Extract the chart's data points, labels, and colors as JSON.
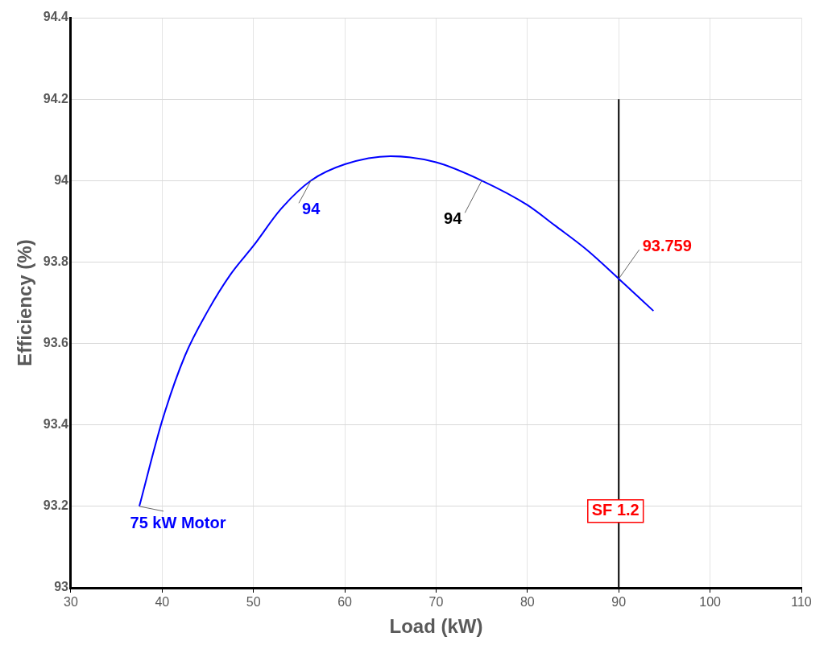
{
  "chart_data": {
    "type": "line",
    "xlabel": "Load (kW)",
    "ylabel": "Efficiency (%)",
    "xlim": [
      30,
      110
    ],
    "xticks": [
      30,
      40,
      50,
      60,
      70,
      80,
      90,
      100,
      110
    ],
    "ylim": [
      93,
      94.4
    ],
    "yticks": [
      93,
      93.2,
      93.4,
      93.6,
      93.8,
      94,
      94.2,
      94.4
    ],
    "grid": true,
    "legend": false,
    "marker": "none",
    "line_style": "solid",
    "series": [
      {
        "name": "75 kW Motor",
        "color": "#0000ff",
        "x": [
          37.5,
          40,
          42.5,
          45,
          47.5,
          50,
          53,
          56.3,
          60,
          65,
          70,
          75,
          80,
          83,
          86.5,
          90,
          93.8
        ],
        "values": [
          93.2,
          93.41,
          93.57,
          93.68,
          93.77,
          93.84,
          93.93,
          94.0,
          94.04,
          94.06,
          94.045,
          94.0,
          93.94,
          93.89,
          93.83,
          93.759,
          93.68
        ]
      },
      {
        "color": "#000000",
        "x": [
          90,
          90
        ],
        "values": [
          93,
          94.2
        ]
      }
    ],
    "annotations": [
      {
        "text": "94",
        "x": 56.3,
        "y": 94
      },
      {
        "text": "94",
        "x": 75,
        "y": 94
      },
      {
        "text": "93.759",
        "x": 90,
        "y": 93.759
      },
      {
        "text": "SF 1.2",
        "x": 90,
        "y": 93.2
      }
    ]
  }
}
